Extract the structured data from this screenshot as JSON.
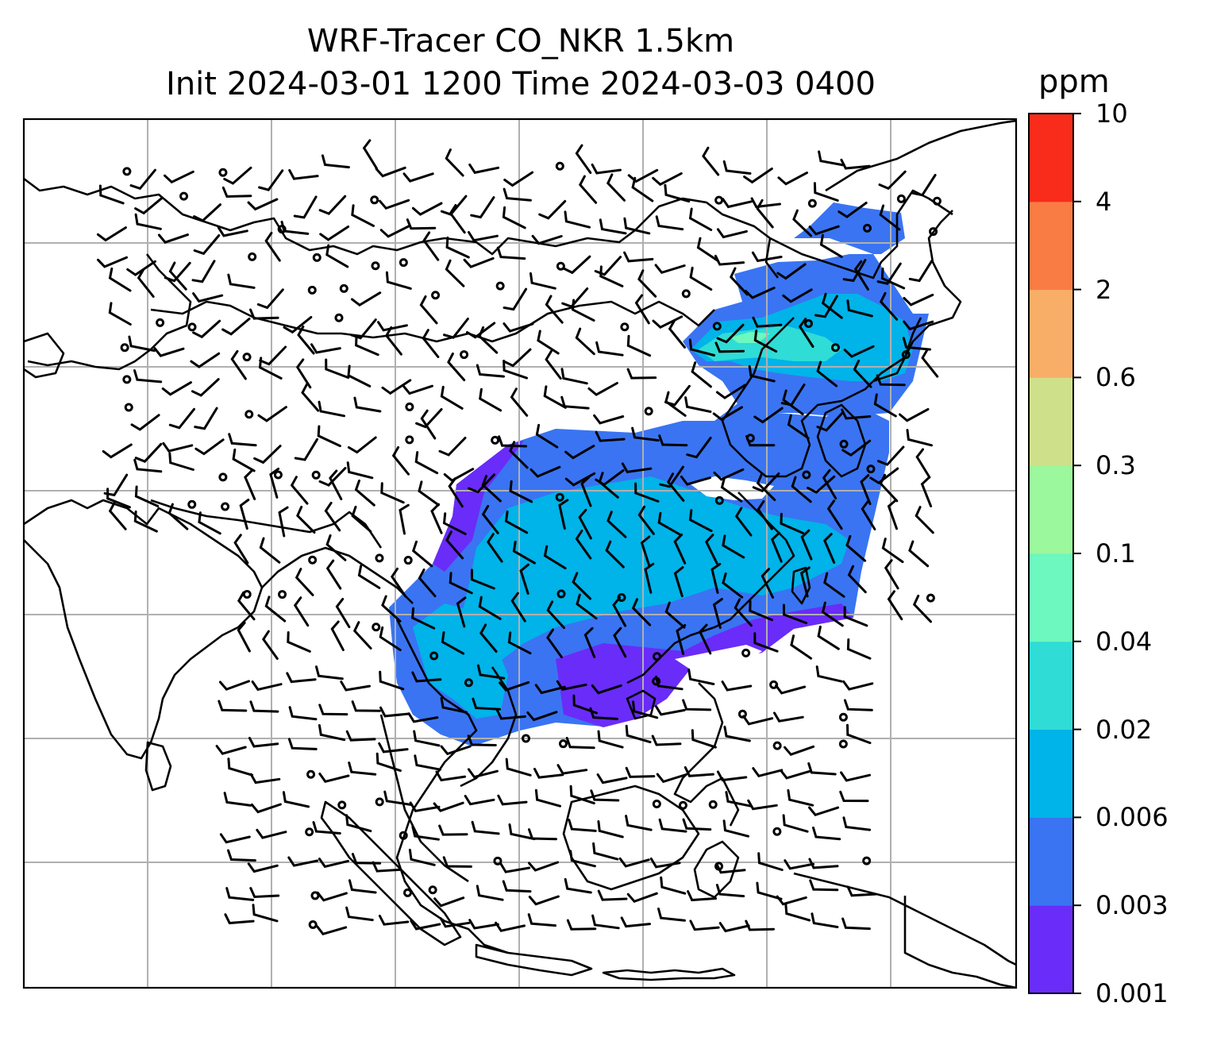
{
  "title": {
    "line1": "WRF-Tracer CO_NKR 1.5km",
    "line2": "Init 2024-03-01 1200 Time 2024-03-03 0400"
  },
  "colorbar": {
    "unit": "ppm",
    "levels": [
      "0.001",
      "0.003",
      "0.006",
      "0.02",
      "0.04",
      "0.1",
      "0.3",
      "0.6",
      "2",
      "4",
      "10"
    ],
    "colors": [
      "#6a2cf8",
      "#3a74f2",
      "#00b3e8",
      "#2fdcd6",
      "#6cf8be",
      "#9cf89c",
      "#cfe08a",
      "#f9ae68",
      "#f97c44",
      "#f92c1c"
    ]
  },
  "map": {
    "grid_color": "#b0b0b0",
    "coastline_color": "#000000",
    "wind_barbs": "black"
  }
}
